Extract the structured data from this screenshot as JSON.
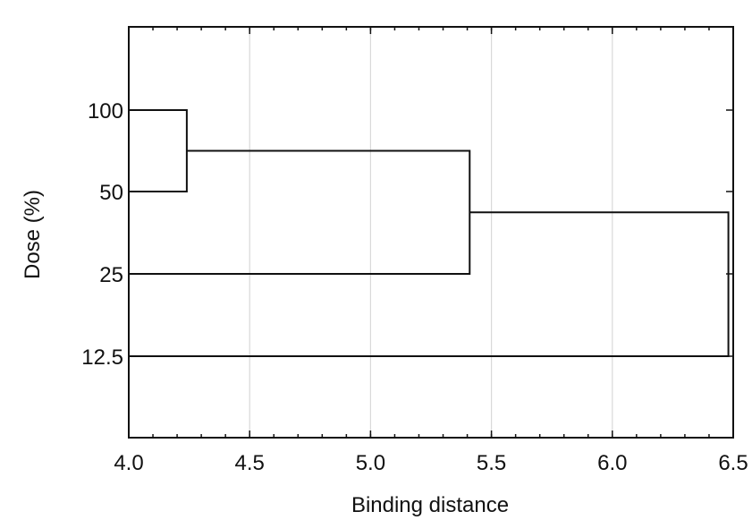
{
  "chart_data": {
    "type": "dendrogram",
    "orientation": "horizontal",
    "xlabel": "Binding distance",
    "ylabel": "Dose (%)",
    "xlim": [
      4.0,
      6.5
    ],
    "x_ticks": [
      "4.0",
      "4.5",
      "5.0",
      "5.5",
      "6.0",
      "6.5"
    ],
    "grid": true,
    "leaves": [
      "100",
      "50",
      "25",
      "12.5"
    ],
    "merges": [
      {
        "left": "100",
        "right": "50",
        "distance": 4.24
      },
      {
        "left": "100+50",
        "right": "25",
        "distance": 5.41
      },
      {
        "left": "100+50+25",
        "right": "12.5",
        "distance": 6.48
      }
    ]
  }
}
